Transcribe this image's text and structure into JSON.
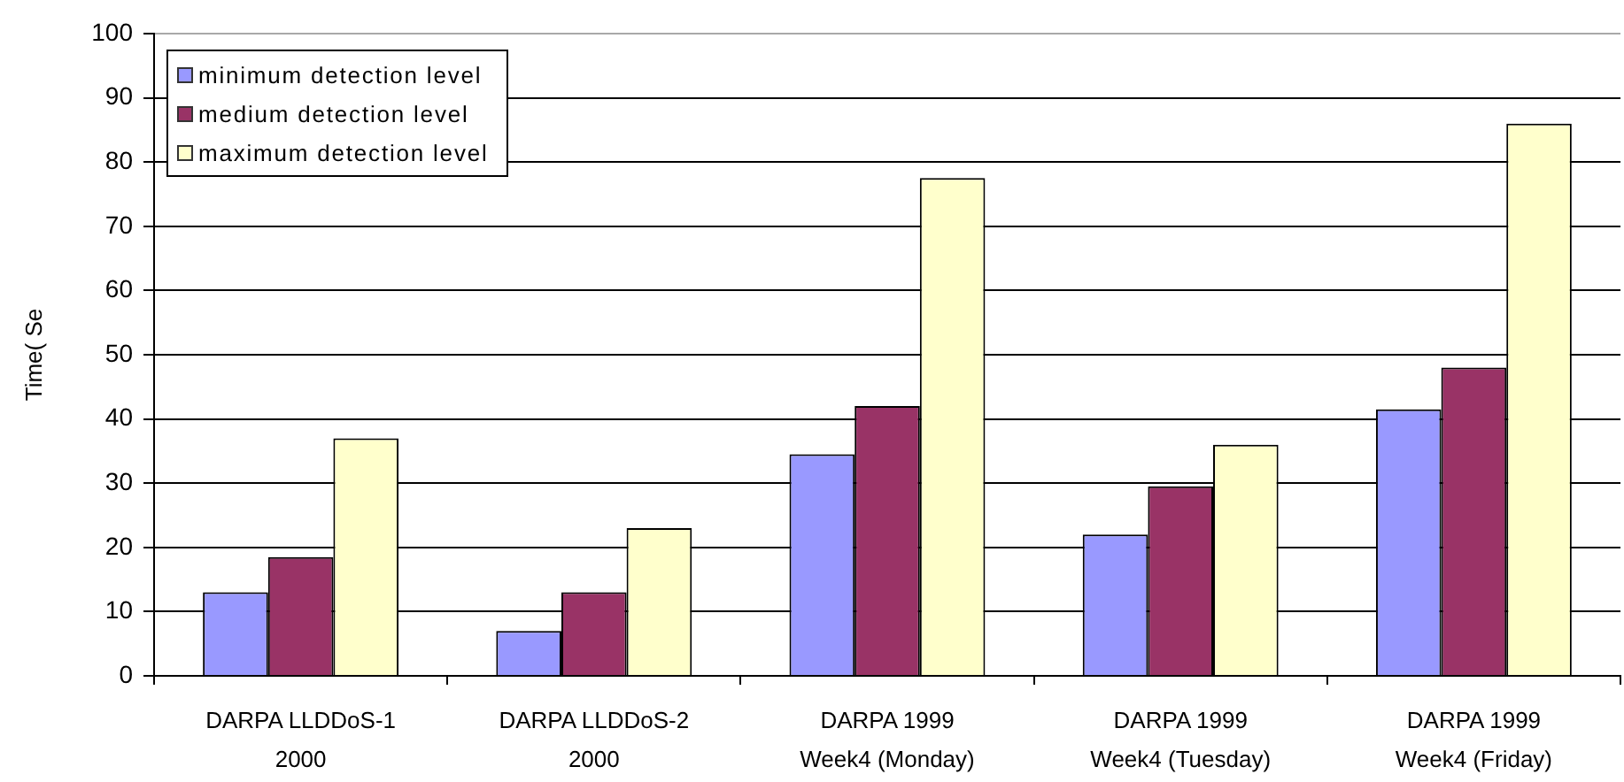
{
  "chart_data": {
    "type": "bar",
    "ylabel": "Time( Se",
    "categories": [
      "DARPA LLDDoS-1\n2000",
      "DARPA LLDDoS-2\n2000",
      "DARPA 1999\nWeek4 (Monday)",
      "DARPA 1999\nWeek4 (Tuesday)",
      "DARPA 1999\nWeek4 (Friday)"
    ],
    "series": [
      {
        "name": "minimum detection level",
        "color": "#9999ff",
        "values": [
          13,
          7,
          34.5,
          22,
          41.5
        ]
      },
      {
        "name": "medium detection level",
        "color": "#993366",
        "values": [
          18.5,
          13,
          42,
          29.5,
          48
        ]
      },
      {
        "name": "maximum detection level",
        "color": "#ffffcc",
        "values": [
          37,
          23,
          77.5,
          36,
          86
        ]
      }
    ],
    "ylim": [
      0,
      100
    ],
    "yticks": [
      0,
      10,
      20,
      30,
      40,
      50,
      60,
      70,
      80,
      90,
      100
    ],
    "grid": "y",
    "legend": "top left"
  }
}
